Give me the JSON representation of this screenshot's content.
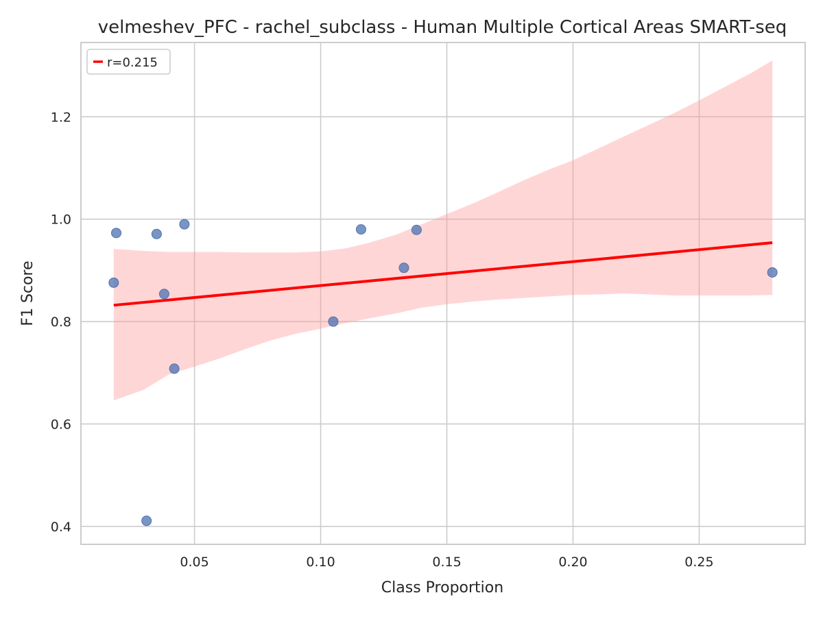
{
  "chart_data": {
    "type": "scatter",
    "title": "velmeshev_PFC - rachel_subclass - Human Multiple Cortical Areas SMART-seq",
    "xlabel": "Class Proportion",
    "ylabel": "F1 Score",
    "xlim": [
      0.005,
      0.292
    ],
    "ylim": [
      0.365,
      1.345
    ],
    "x_ticks": [
      0.05,
      0.1,
      0.15,
      0.2,
      0.25
    ],
    "x_tick_labels": [
      "0.05",
      "0.10",
      "0.15",
      "0.20",
      "0.25"
    ],
    "y_ticks": [
      0.4,
      0.6,
      0.8,
      1.0,
      1.2
    ],
    "y_tick_labels": [
      "0.4",
      "0.6",
      "0.8",
      "1.0",
      "1.2"
    ],
    "grid": true,
    "legend": {
      "position": "top-left",
      "entries": [
        "r=0.215"
      ]
    },
    "points": [
      {
        "x": 0.018,
        "y": 0.876
      },
      {
        "x": 0.019,
        "y": 0.973
      },
      {
        "x": 0.031,
        "y": 0.411
      },
      {
        "x": 0.035,
        "y": 0.971
      },
      {
        "x": 0.038,
        "y": 0.854
      },
      {
        "x": 0.042,
        "y": 0.708
      },
      {
        "x": 0.046,
        "y": 0.99
      },
      {
        "x": 0.105,
        "y": 0.8
      },
      {
        "x": 0.116,
        "y": 0.98
      },
      {
        "x": 0.133,
        "y": 0.905
      },
      {
        "x": 0.138,
        "y": 0.979
      },
      {
        "x": 0.279,
        "y": 0.896
      }
    ],
    "regression": {
      "label": "r=0.215",
      "x": [
        0.018,
        0.279
      ],
      "y": [
        0.832,
        0.954
      ]
    },
    "confidence_band": {
      "x": [
        0.018,
        0.03,
        0.04,
        0.05,
        0.06,
        0.07,
        0.08,
        0.09,
        0.1,
        0.11,
        0.12,
        0.13,
        0.14,
        0.15,
        0.16,
        0.17,
        0.18,
        0.19,
        0.2,
        0.21,
        0.22,
        0.23,
        0.24,
        0.25,
        0.26,
        0.27,
        0.279
      ],
      "lower": [
        0.646,
        0.667,
        0.697,
        0.712,
        0.728,
        0.746,
        0.763,
        0.776,
        0.786,
        0.797,
        0.807,
        0.816,
        0.827,
        0.834,
        0.839,
        0.843,
        0.846,
        0.849,
        0.852,
        0.853,
        0.855,
        0.853,
        0.851,
        0.851,
        0.851,
        0.851,
        0.852
      ],
      "upper": [
        0.942,
        0.938,
        0.936,
        0.936,
        0.936,
        0.935,
        0.935,
        0.935,
        0.937,
        0.943,
        0.955,
        0.97,
        0.99,
        1.01,
        1.03,
        1.052,
        1.075,
        1.096,
        1.115,
        1.138,
        1.161,
        1.184,
        1.207,
        1.232,
        1.258,
        1.284,
        1.31
      ]
    },
    "colors": {
      "points": "#4c72b0",
      "line": "#ff0000",
      "band": "#ff9999",
      "grid": "#cccccc",
      "frame": "#cccccc",
      "text": "#262626"
    }
  }
}
